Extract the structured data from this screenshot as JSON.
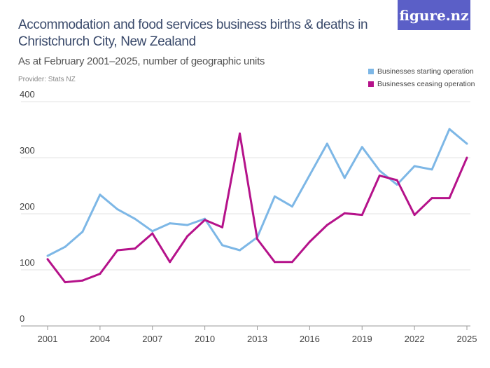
{
  "title": "Accommodation and food services business births & deaths in Christchurch City, New Zealand",
  "subtitle": "As at February 2001–2025, number of geographic units",
  "provider": "Provider: Stats NZ",
  "logo": "figure.nz",
  "chart_data": {
    "type": "line",
    "x": [
      2001,
      2002,
      2003,
      2004,
      2005,
      2006,
      2007,
      2008,
      2009,
      2010,
      2011,
      2012,
      2013,
      2014,
      2015,
      2016,
      2017,
      2018,
      2019,
      2020,
      2021,
      2022,
      2023,
      2024,
      2025
    ],
    "ylim": [
      0,
      400
    ],
    "yticks": [
      "0",
      "100",
      "200",
      "300",
      "400"
    ],
    "xticks": [
      "2001",
      "2004",
      "2007",
      "2010",
      "2013",
      "2016",
      "2019",
      "2022",
      "2025"
    ],
    "grid": true,
    "legend": "top-right",
    "series": [
      {
        "name": "Businesses starting operation",
        "color": "#7db7e6",
        "values": [
          125,
          141,
          168,
          234,
          208,
          191,
          169,
          183,
          180,
          191,
          144,
          135,
          158,
          231,
          213,
          269,
          325,
          264,
          319,
          277,
          252,
          285,
          279,
          351,
          325
        ]
      },
      {
        "name": "Businesses ceasing operation",
        "color": "#b5128a",
        "values": [
          119,
          78,
          81,
          93,
          135,
          138,
          165,
          114,
          160,
          189,
          176,
          343,
          155,
          114,
          114,
          150,
          180,
          201,
          198,
          268,
          260,
          198,
          228,
          228,
          300
        ]
      }
    ]
  }
}
